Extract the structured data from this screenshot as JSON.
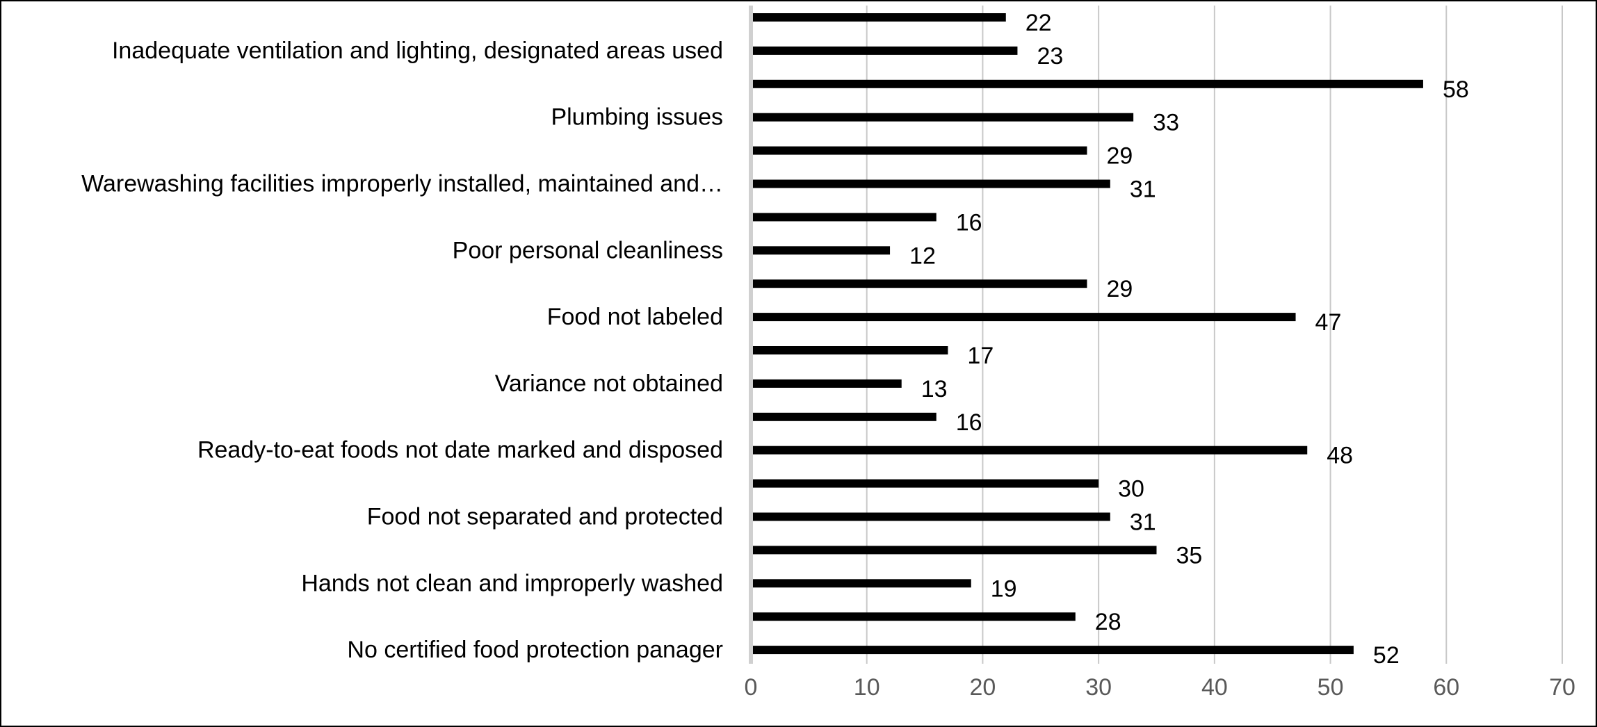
{
  "chart_data": {
    "type": "bar",
    "orientation": "horizontal",
    "title": "",
    "xlabel": "",
    "ylabel": "",
    "xlim": [
      0,
      70
    ],
    "xticks": [
      0,
      10,
      20,
      30,
      40,
      50,
      60,
      70
    ],
    "grid": "vertical",
    "legend": "none",
    "bar_color": "#000000",
    "grid_color": "#c8c8c8",
    "categories": [
      "",
      "Inadequate ventilation and lighting, designated areas used",
      "",
      "Plumbing issues",
      "",
      "Warewashing facilities improperly installed, maintained and…",
      "",
      "Poor personal cleanliness",
      "",
      "Food not labeled",
      "",
      "Variance not obtained",
      "",
      "Ready-to-eat foods not date marked and disposed",
      "",
      "Food not separated and protected",
      "",
      "Hands not clean and improperly washed",
      "",
      "No certified food protection panager"
    ],
    "values": [
      22,
      23,
      58,
      33,
      29,
      31,
      16,
      12,
      29,
      47,
      17,
      13,
      16,
      48,
      30,
      31,
      35,
      19,
      28,
      52
    ]
  }
}
